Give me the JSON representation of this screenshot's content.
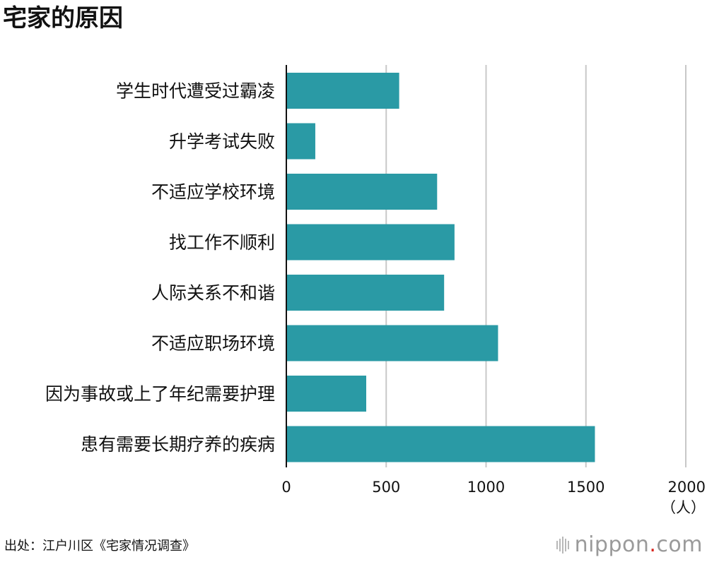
{
  "title": "宅家的原因",
  "source": "出处：江户川区《宅家情况调查》",
  "logo": {
    "name": "nippon",
    "dot": ".",
    "tld": "com",
    "accent": "#d8231c"
  },
  "chart_data": {
    "type": "bar",
    "orientation": "horizontal",
    "categories": [
      "学生时代遭受过霸凌",
      "升学考试失败",
      "不适应学校环境",
      "找工作不顺利",
      "人际关系不和谐",
      "不适应职场环境",
      "因为事故或上了年纪需要护理",
      "患有需要长期疗养的疾病"
    ],
    "values": [
      565,
      145,
      755,
      842,
      790,
      1060,
      400,
      1545
    ],
    "xlim": [
      0,
      2000
    ],
    "xticks": [
      0,
      500,
      1000,
      1500,
      2000
    ],
    "xunit": "（人）",
    "grid": true,
    "bar_color": "#2a9aa5"
  }
}
